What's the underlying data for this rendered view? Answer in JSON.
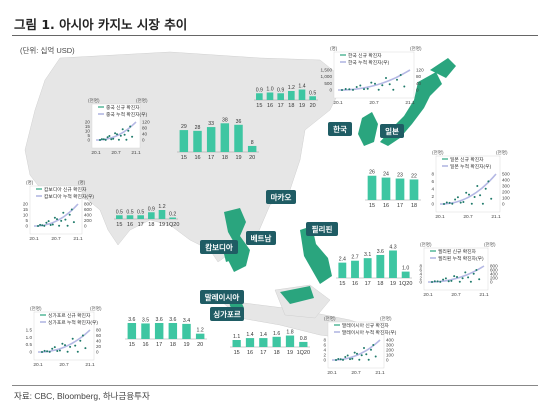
{
  "title": "그림 1. 아시아 카지노 시장 추이",
  "unit": "(단위: 십억 USD)",
  "source": "자료: CBC, Bloomberg, 하나금융투자",
  "colors": {
    "bar": "#3ec6a2",
    "map": "#2aa57e",
    "tag": "#1f5c64",
    "ocean": "#eaeaea",
    "covid": "#9fd8d0",
    "cum": "#c7c9e8"
  },
  "countries": {
    "korea": "한국",
    "japan": "일본",
    "macau": "마카오",
    "philippines": "필리핀",
    "vietnam": "베트남",
    "cambodia": "캄보디아",
    "malaysia": "말레이시아",
    "singapore": "싱가포르"
  },
  "chart_data": [
    {
      "id": "korea-bars",
      "type": "bar",
      "categories": [
        "15",
        "16",
        "17",
        "18",
        "19",
        "20"
      ],
      "values": [
        0.9,
        1.0,
        0.9,
        1.2,
        1.4,
        0.5
      ],
      "labels": [
        "0.9",
        "1.0",
        "0.9",
        "1.2",
        "1.4",
        "0.5"
      ]
    },
    {
      "id": "macau-bars",
      "type": "bar",
      "categories": [
        "15",
        "16",
        "17",
        "18",
        "19",
        "20"
      ],
      "values": [
        29,
        28,
        33,
        38,
        36,
        8
      ],
      "labels": [
        "29",
        "28",
        "33",
        "38",
        "36",
        "8"
      ]
    },
    {
      "id": "japan-bars",
      "type": "bar",
      "categories": [
        "15",
        "16",
        "17",
        "18"
      ],
      "values": [
        26,
        24,
        23,
        22
      ],
      "labels": [
        "26",
        "24",
        "23",
        "22"
      ]
    },
    {
      "id": "cambodia-bars",
      "type": "bar",
      "categories": [
        "15",
        "16",
        "17",
        "18",
        "19",
        "1Q20"
      ],
      "values": [
        0.5,
        0.5,
        0.5,
        0.9,
        1.2,
        0.2
      ],
      "labels": [
        "0.5",
        "0.5",
        "0.5",
        "0.9",
        "1.2",
        "0.2"
      ]
    },
    {
      "id": "philippines-bars",
      "type": "bar",
      "categories": [
        "15",
        "16",
        "17",
        "18",
        "19",
        "1Q20"
      ],
      "values": [
        2.4,
        2.7,
        3.1,
        3.6,
        4.3,
        1.0
      ],
      "labels": [
        "2.4",
        "2.7",
        "3.1",
        "3.6",
        "4.3",
        "1.0"
      ]
    },
    {
      "id": "singapore-bars",
      "type": "bar",
      "categories": [
        "15",
        "16",
        "17",
        "18",
        "19",
        "20"
      ],
      "values": [
        3.6,
        3.5,
        3.6,
        3.6,
        3.4,
        1.2
      ],
      "labels": [
        "3.6",
        "3.5",
        "3.6",
        "3.6",
        "3.4",
        "1.2"
      ]
    },
    {
      "id": "malaysia-bars",
      "type": "bar",
      "categories": [
        "15",
        "16",
        "17",
        "18",
        "19",
        "1Q20"
      ],
      "values": [
        1.1,
        1.4,
        1.4,
        1.6,
        1.8,
        0.8
      ],
      "labels": [
        "1.1",
        "1.4",
        "1.4",
        "1.6",
        "1.8",
        "0.8"
      ]
    },
    {
      "id": "korea-covid",
      "type": "line",
      "legend": [
        "한국 신규 확진자",
        "한국 누적 확진자(우)"
      ],
      "yleft": [
        "0",
        "500",
        "1,000",
        "1,500"
      ],
      "yright": [
        "0",
        "40",
        "80",
        "120"
      ],
      "yleft_label": "(명)",
      "yright_label": "(천명)",
      "x": [
        "20.1",
        "20.7",
        "21.1"
      ]
    },
    {
      "id": "japan-covid",
      "type": "line",
      "legend": [
        "일본 신규 확진자",
        "일본 누적 확진자(우)"
      ],
      "yleft": [
        "0",
        "2",
        "4",
        "6",
        "8"
      ],
      "yright": [
        "0",
        "100",
        "200",
        "300",
        "400",
        "500"
      ],
      "yleft_label": "(천명)",
      "yright_label": "(천명)",
      "x": [
        "20.1",
        "20.7",
        "21.1"
      ]
    },
    {
      "id": "macau-covid",
      "type": "line",
      "legend": [
        "중국 신규 확진자",
        "중국 누적 확진자(우)"
      ],
      "yleft": [
        "0",
        "5",
        "10",
        "15",
        "20"
      ],
      "yright": [
        "0",
        "40",
        "80",
        "120"
      ],
      "yleft_label": "(천명)",
      "yright_label": "(천명)",
      "x": [
        "20.1",
        "20.7",
        "21.1"
      ]
    },
    {
      "id": "cambodia-covid",
      "type": "line",
      "legend": [
        "캄보디아 신규 확진자",
        "캄보디아 누적 확진자(우)"
      ],
      "yleft": [
        "0",
        "5",
        "10",
        "15",
        "20"
      ],
      "yright": [
        "0",
        "200",
        "400",
        "600",
        "800"
      ],
      "yleft_label": "(명)",
      "yright_label": "(명)",
      "x": [
        "20.1",
        "20.7",
        "21.1"
      ]
    },
    {
      "id": "philippines-covid",
      "type": "line",
      "legend": [
        "필리핀 신규 확진자",
        "필리핀 누적 확진자(우)"
      ],
      "yleft": [
        "0",
        "2",
        "4",
        "6",
        "8"
      ],
      "yright": [
        "0",
        "200",
        "400",
        "600",
        "800"
      ],
      "yleft_label": "(천명)",
      "yright_label": "(천명)",
      "x": [
        "20.1",
        "20.7",
        "21.1"
      ]
    },
    {
      "id": "singapore-covid",
      "type": "line",
      "legend": [
        "싱가포르 신규 확진자",
        "싱가포르 누적 확진자(우)"
      ],
      "yleft": [
        "0",
        "0.5",
        "1.0",
        "1.5"
      ],
      "yright": [
        "0",
        "20",
        "40",
        "60",
        "80"
      ],
      "yleft_label": "(천명)",
      "yright_label": "(천명)",
      "x": [
        "20.1",
        "20.7",
        "21.1"
      ]
    },
    {
      "id": "malaysia-covid",
      "type": "line",
      "legend": [
        "말레이시아 신규 확진자",
        "말레이시아 누적 확진자(우)"
      ],
      "yleft": [
        "0",
        "2",
        "4",
        "6",
        "8"
      ],
      "yright": [
        "0",
        "100",
        "200",
        "300",
        "400"
      ],
      "yleft_label": "(천명)",
      "yright_label": "(천명)",
      "x": [
        "20.1",
        "20.7",
        "21.1"
      ]
    }
  ]
}
